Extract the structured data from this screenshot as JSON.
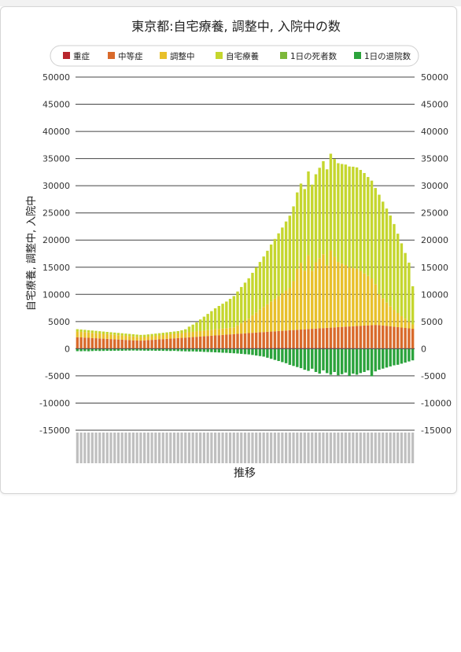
{
  "chart_data": {
    "type": "bar",
    "title": "東京都:自宅療養, 調整中, 入院中の数",
    "xlabel": "推移",
    "ylabel": "自宅療養, 調整中, 入院中",
    "ylim": [
      -15000,
      50000
    ],
    "yticks": [
      50000,
      45000,
      40000,
      35000,
      30000,
      25000,
      20000,
      15000,
      10000,
      5000,
      0,
      -5000,
      -10000,
      -15000
    ],
    "grid": true,
    "legend_position": "top",
    "series": [
      {
        "name": "重症",
        "color": "#b8262d",
        "values": [
          40,
          40,
          40,
          39,
          39,
          38,
          38,
          37,
          36,
          36,
          35,
          35,
          34,
          34,
          34,
          33,
          33,
          33,
          34,
          34,
          35,
          36,
          37,
          38,
          40,
          41,
          43,
          45,
          47,
          49,
          51,
          54,
          57,
          61,
          66,
          71,
          77,
          83,
          88,
          92,
          95,
          98,
          101,
          104,
          107,
          109,
          111,
          113,
          115,
          117,
          119,
          121,
          123,
          125,
          127,
          129,
          130,
          131,
          132,
          132,
          133,
          133,
          133,
          132,
          132,
          131,
          130,
          129,
          127,
          125,
          123,
          120,
          117,
          114,
          110,
          106,
          102,
          97,
          92,
          87,
          82,
          77,
          72,
          67,
          62,
          58,
          54,
          50,
          46,
          43,
          40
        ]
      },
      {
        "name": "中等症",
        "color": "#d96a2b",
        "values": [
          2082,
          2044,
          2006,
          1968,
          1930,
          1892,
          1854,
          1816,
          1778,
          1740,
          1702,
          1664,
          1626,
          1588,
          1550,
          1512,
          1474,
          1462,
          1505,
          1550,
          1595,
          1640,
          1685,
          1730,
          1775,
          1820,
          1865,
          1910,
          1955,
          2000,
          2045,
          2090,
          2135,
          2180,
          2225,
          2270,
          2315,
          2360,
          2405,
          2450,
          2495,
          2540,
          2585,
          2630,
          2675,
          2720,
          2765,
          2810,
          2855,
          2900,
          2945,
          2990,
          3035,
          3080,
          3125,
          3170,
          3215,
          3260,
          3305,
          3350,
          3395,
          3440,
          3485,
          3530,
          3575,
          3620,
          3665,
          3710,
          3755,
          3800,
          3845,
          3890,
          3935,
          3980,
          4025,
          4070,
          4115,
          4160,
          4205,
          4250,
          4295,
          4273,
          4202,
          4131,
          4060,
          3989,
          3918,
          3847,
          3776,
          3705,
          3634
        ]
      },
      {
        "name": "調整中",
        "color": "#e8c02b",
        "values": [
          1038,
          1016,
          994,
          972,
          950,
          928,
          906,
          884,
          862,
          840,
          818,
          796,
          774,
          752,
          730,
          708,
          686,
          640,
          618,
          644,
          670,
          696,
          722,
          748,
          774,
          800,
          826,
          852,
          878,
          904,
          930,
          956,
          982,
          1008,
          1034,
          1060,
          1086,
          1112,
          1138,
          1164,
          1190,
          1216,
          1243,
          1574,
          1930,
          2286,
          2642,
          3250,
          3706,
          4162,
          4618,
          5074,
          5531,
          5987,
          6443,
          6899,
          7355,
          7811,
          9000,
          11200,
          12300,
          10800,
          13600,
          10700,
          12200,
          12900,
          13600,
          11500,
          14200,
          13000,
          12000,
          11650,
          11350,
          10870,
          10750,
          10550,
          10100,
          9600,
          9100,
          8600,
          7500,
          5700,
          5000,
          4300,
          3700,
          3100,
          2600,
          2100,
          1700,
          1200,
          800
        ]
      },
      {
        "name": "自宅療養",
        "color": "#c5d62e",
        "values": [
          440,
          442,
          437,
          432,
          431,
          429,
          425,
          423,
          417,
          417,
          415,
          416,
          416,
          414,
          413,
          408,
          407,
          408,
          411,
          411,
          412,
          413,
          415,
          416,
          419,
          423,
          432,
          438,
          515,
          626,
          1037,
          1335,
          1669,
          2136,
          2576,
          3009,
          3436,
          3877,
          4242,
          4576,
          4899,
          5328,
          5762,
          6221,
          6645,
          7044,
          7449,
          7797,
          8305,
          8788,
          9292,
          9846,
          10489,
          11016,
          11541,
          12108,
          12717,
          13287,
          13763,
          14091,
          14571,
          15013,
          15412,
          15843,
          16207,
          16655,
          17127,
          17683,
          17811,
          18000,
          18180,
          18344,
          18495,
          18578,
          18621,
          18649,
          18595,
          18479,
          18207,
          18000,
          17700,
          18300,
          17800,
          17300,
          16700,
          15800,
          14600,
          13400,
          12100,
          10900,
          7026
        ]
      },
      {
        "name": "1日の死者数",
        "color": "#7db83a",
        "values": [
          -20,
          -20,
          -20,
          -18,
          -18,
          -18,
          -17,
          -17,
          -16,
          -16,
          -15,
          -15,
          -15,
          -14,
          -14,
          -14,
          -13,
          -13,
          -13,
          -13,
          -14,
          -14,
          -15,
          -15,
          -16,
          -16,
          -17,
          -18,
          -19,
          -20,
          -21,
          -22,
          -23,
          -24,
          -25,
          -27,
          -28,
          -30,
          -32,
          -34,
          -36,
          -38,
          -40,
          -42,
          -44,
          -46,
          -48,
          -50,
          -52,
          -54,
          -56,
          -58,
          -60,
          -62,
          -64,
          -66,
          -68,
          -70,
          -72,
          -74,
          -76,
          -78,
          -80,
          -82,
          -84,
          -85,
          -86,
          -87,
          -88,
          -88,
          -88,
          -88,
          -87,
          -86,
          -85,
          -84,
          -82,
          -80,
          -78,
          -75,
          -72,
          -69,
          -66,
          -63,
          -60,
          -57,
          -54,
          -51,
          -48,
          -45,
          -42
        ]
      },
      {
        "name": "1日の退院数",
        "color": "#2ba33c",
        "values": [
          -430,
          -440,
          -420,
          -450,
          -410,
          -380,
          -400,
          -390,
          -370,
          -380,
          -360,
          -350,
          -360,
          -340,
          -330,
          -320,
          -340,
          -330,
          -350,
          -360,
          -340,
          -370,
          -360,
          -380,
          -390,
          -400,
          -380,
          -420,
          -440,
          -460,
          -480,
          -470,
          -500,
          -520,
          -560,
          -580,
          -600,
          -640,
          -660,
          -700,
          -720,
          -760,
          -800,
          -840,
          -900,
          -960,
          -1000,
          -1100,
          -1200,
          -1300,
          -1400,
          -1600,
          -1800,
          -2000,
          -2200,
          -2400,
          -2600,
          -2900,
          -3100,
          -3300,
          -3500,
          -3800,
          -4000,
          -3600,
          -4200,
          -4500,
          -3900,
          -4400,
          -4700,
          -4200,
          -4800,
          -4600,
          -4300,
          -4900,
          -4500,
          -4700,
          -4400,
          -4200,
          -3900,
          -5000,
          -4100,
          -3800,
          -3600,
          -3400,
          -3200,
          -3000,
          -2900,
          -2700,
          -2500,
          -2300,
          -2100
        ]
      }
    ]
  }
}
